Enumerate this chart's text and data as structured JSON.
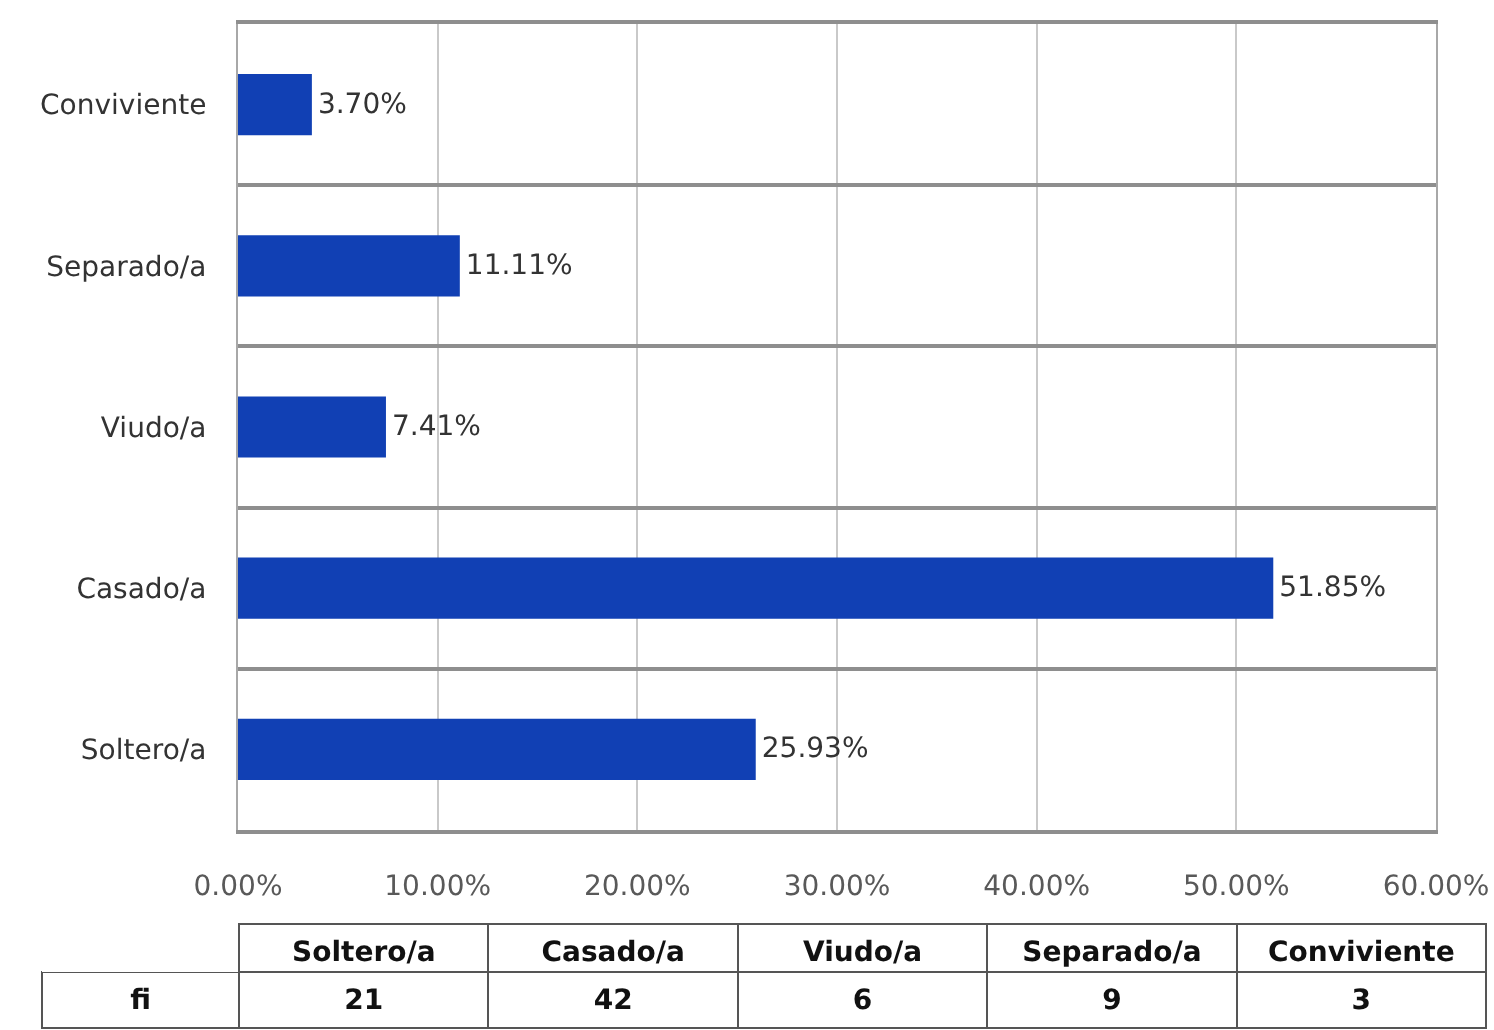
{
  "chart_data": [
    {
      "type": "bar",
      "orientation": "horizontal",
      "categories": [
        "Conviviente",
        "Separado/a",
        "Viudo/a",
        "Casado/a",
        "Soltero/a"
      ],
      "values": [
        3.7,
        11.11,
        7.41,
        51.85,
        25.93
      ],
      "value_labels": [
        "3.70%",
        "11.11%",
        "7.41%",
        "51.85%",
        "25.93%"
      ],
      "color": "#1140b4",
      "xlim": [
        0,
        60
      ],
      "xticks": [
        {
          "value": 0,
          "label": "0.00%"
        },
        {
          "value": 10,
          "label": "10.00%"
        },
        {
          "value": 20,
          "label": "20.00%"
        },
        {
          "value": 30,
          "label": "30.00%"
        },
        {
          "value": 40,
          "label": "40.00%"
        },
        {
          "value": 50,
          "label": "50.00%"
        },
        {
          "value": 60,
          "label": "60.00%"
        }
      ],
      "grid": true
    },
    {
      "type": "other",
      "categories": [
        "Soltero/a",
        "Casado/a",
        "Viudo/a",
        "Separado/a",
        "Conviviente"
      ],
      "series": [
        {
          "name": "fi",
          "values": [
            21,
            42,
            6,
            9,
            3
          ]
        }
      ],
      "data_labels": true
    }
  ]
}
